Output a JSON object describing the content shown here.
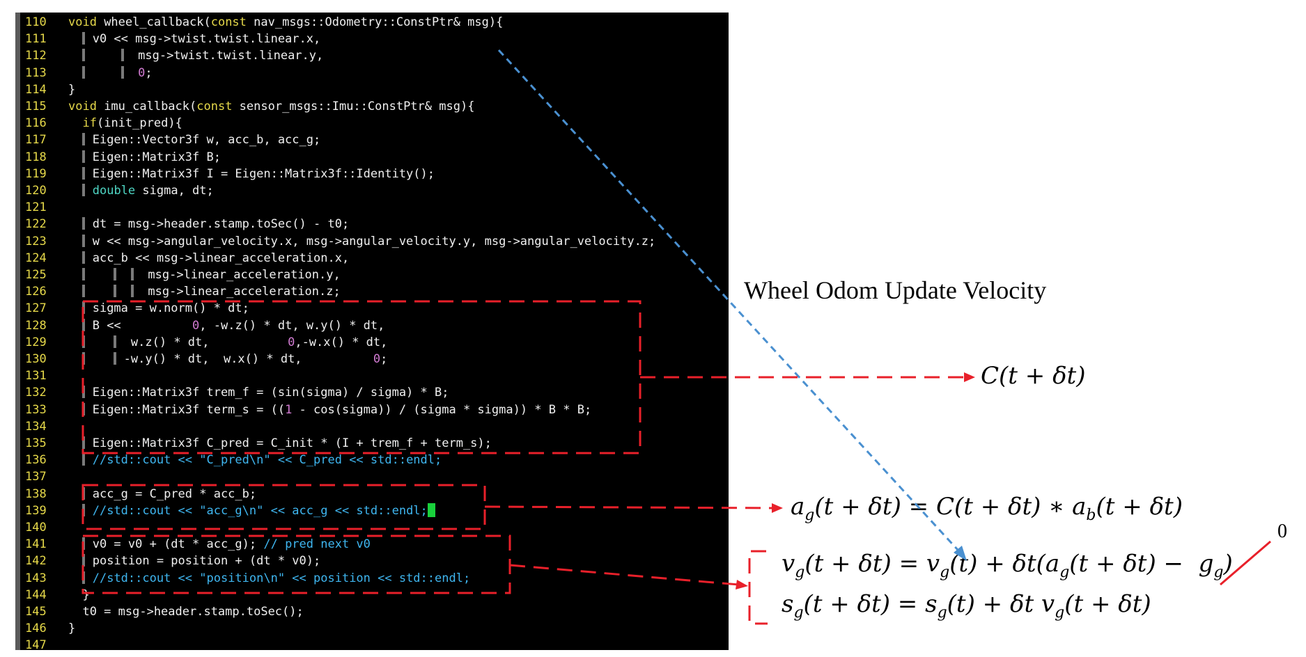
{
  "code_lines": [
    {
      "n": "110",
      "html": "<span class=\"kw\">void</span> wheel_callback(<span class=\"kw\">const</span> nav_msgs::Odometry::ConstPtr&amp; msg){"
    },
    {
      "n": "111",
      "html": "  <span class=\"guide\"></span> v0 &lt;&lt; msg-&gt;twist.twist.linear.x,"
    },
    {
      "n": "112",
      "html": "  <span class=\"guide\"></span>     <span class=\"guide\"></span>  msg-&gt;twist.twist.linear.y,"
    },
    {
      "n": "113",
      "html": "  <span class=\"guide\"></span>     <span class=\"guide\"></span>  <span class=\"num\">0</span>;"
    },
    {
      "n": "114",
      "html": "}"
    },
    {
      "n": "115",
      "html": "<span class=\"kw\">void</span> imu_callback(<span class=\"kw\">const</span> sensor_msgs::Imu::ConstPtr&amp; msg){"
    },
    {
      "n": "116",
      "html": "  <span class=\"kw\">if</span>(init_pred){"
    },
    {
      "n": "117",
      "html": "  <span class=\"guide\"></span> Eigen::Vector3f w, acc_b, acc_g;"
    },
    {
      "n": "118",
      "html": "  <span class=\"guide\"></span> Eigen::Matrix3f B;"
    },
    {
      "n": "119",
      "html": "  <span class=\"guide\"></span> Eigen::Matrix3f I = Eigen::Matrix3f::Identity();"
    },
    {
      "n": "120",
      "html": "  <span class=\"guide\"></span> <span class=\"ty\">double</span> sigma, dt;"
    },
    {
      "n": "121",
      "html": ""
    },
    {
      "n": "122",
      "html": "  <span class=\"guide\"></span> dt = msg-&gt;header.stamp.toSec() - t0;"
    },
    {
      "n": "123",
      "html": "  <span class=\"guide\"></span> w &lt;&lt; msg-&gt;angular_velocity.x, msg-&gt;angular_velocity.y, msg-&gt;angular_velocity.z;"
    },
    {
      "n": "124",
      "html": "  <span class=\"guide\"></span> acc_b &lt;&lt; msg-&gt;linear_acceleration.x,"
    },
    {
      "n": "125",
      "html": "  <span class=\"guide\"></span>    <span class=\"guide\"></span>  <span class=\"guide\"></span>  msg-&gt;linear_acceleration.y,"
    },
    {
      "n": "126",
      "html": "  <span class=\"guide\"></span>    <span class=\"guide\"></span>  <span class=\"guide\"></span>  msg-&gt;linear_acceleration.z;"
    },
    {
      "n": "127",
      "html": "  <span class=\"guide\"></span> sigma = w.norm() * dt;"
    },
    {
      "n": "128",
      "html": "  <span class=\"guide\"></span> B &lt;&lt;          <span class=\"num\">0</span>, -w.z() * dt, w.y() * dt,"
    },
    {
      "n": "129",
      "html": "  <span class=\"guide\"></span>    <span class=\"guide\"></span>  w.z() * dt,           <span class=\"num\">0</span>,-w.x() * dt,"
    },
    {
      "n": "130",
      "html": "  <span class=\"guide\"></span>    <span class=\"guide\"></span> -w.y() * dt,  w.x() * dt,          <span class=\"num\">0</span>;"
    },
    {
      "n": "131",
      "html": ""
    },
    {
      "n": "132",
      "html": "  <span class=\"guide\"></span> Eigen::Matrix3f trem_f = (sin(sigma) / sigma) * B;"
    },
    {
      "n": "133",
      "html": "  <span class=\"guide\"></span> Eigen::Matrix3f term_s = ((<span class=\"num\">1</span> - cos(sigma)) / (sigma * sigma)) * B * B;"
    },
    {
      "n": "134",
      "html": ""
    },
    {
      "n": "135",
      "html": "  <span class=\"guide\"></span> Eigen::Matrix3f C_pred = C_init * (I + trem_f + term_s);"
    },
    {
      "n": "136",
      "html": "  <span class=\"guide\"></span> <span class=\"cm\">//std::cout &lt;&lt; \"C_pred\\n\" &lt;&lt; C_pred &lt;&lt; std::endl;</span>"
    },
    {
      "n": "137",
      "html": ""
    },
    {
      "n": "138",
      "html": "  <span class=\"guide\"></span> acc_g = C_pred * acc_b;"
    },
    {
      "n": "139",
      "html": "  <span class=\"guide\"></span> <span class=\"cm\">//std::cout &lt;&lt; \"acc_g\\n\" &lt;&lt; acc_g &lt;&lt; std::endl;</span><span class=\"cursor\"></span>"
    },
    {
      "n": "140",
      "html": ""
    },
    {
      "n": "141",
      "html": "  <span class=\"guide\"></span> v0 = v0 + (dt * acc_g); <span class=\"cm\">// pred next v0</span>"
    },
    {
      "n": "142",
      "html": "  <span class=\"guide\"></span> position = position + (dt * v0);"
    },
    {
      "n": "143",
      "html": "  <span class=\"guide\"></span> <span class=\"cm\">//std::cout &lt;&lt; \"position\\n\" &lt;&lt; position &lt;&lt; std::endl;</span>"
    },
    {
      "n": "144",
      "html": "  }"
    },
    {
      "n": "145",
      "html": "  t0 = msg-&gt;header.stamp.toSec();"
    },
    {
      "n": "146",
      "html": "}"
    },
    {
      "n": "147",
      "html": ""
    }
  ],
  "annotations": {
    "wheel_label": "Wheel Odom Update Velocity",
    "zero_label": "0",
    "eq_C": "<i>C</i>(<i>t</i> + <i>δt</i>)",
    "eq_a": "<i>a<sub>g</sub></i>(<i>t</i> + <i>δt</i>) = <i>C</i>(<i>t</i> + <i>δt</i>) ∗ <i>a<sub>b</sub></i>(<i>t</i> + <i>δt</i>)",
    "eq_v": "<i>v<sub>g</sub></i>(<i>t</i> + <i>δt</i>) = <i>v<sub>g</sub></i>(<i>t</i>) + <i>δt</i>(<i>a<sub>g</sub></i>(<i>t</i> + <i>δt</i>) −  <i>g<sub>g</sub></i>)",
    "eq_s": "<i>s<sub>g</sub></i>(<i>t</i> + <i>δt</i>) = <i>s<sub>g</sub></i>(<i>t</i>) + <i>δt</i> <i>v<sub>g</sub></i>(<i>t</i> + <i>δt</i>)"
  },
  "colors": {
    "background": "#000000",
    "line_numbers": "#e6d94a",
    "code_text": "#f0f0f0",
    "keyword": "#e6d94a",
    "type": "#4fd6c4",
    "number": "#d27bd2",
    "comment": "#3fb6f0",
    "cursor": "#19d13c",
    "annotation_red": "#e8202a",
    "annotation_blue": "#4a90d0"
  }
}
